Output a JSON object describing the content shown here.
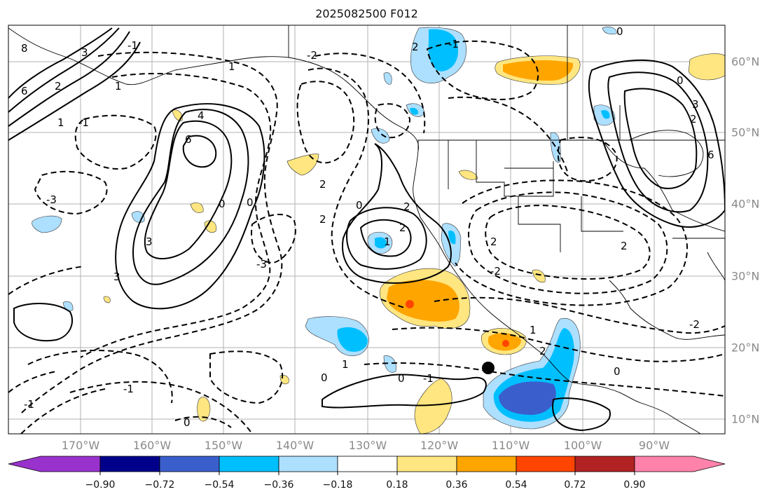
{
  "title": "2025082500 F012",
  "map": {
    "lon_labels": [
      "170°W",
      "160°W",
      "150°W",
      "140°W",
      "130°W",
      "120°W",
      "110°W",
      "100°W",
      "90°W"
    ],
    "lat_labels": [
      "60°N",
      "50°N",
      "40°N",
      "30°N",
      "20°N",
      "10°N"
    ],
    "contour_labels": [
      "8",
      "3",
      "6",
      "2",
      "1",
      "4",
      "6",
      "-1",
      "-3",
      "3",
      "0",
      "0",
      "-3",
      "3",
      "-2",
      "-1",
      "2",
      "0",
      "2",
      "2",
      "1",
      "2",
      "1",
      "-1",
      "0",
      "0",
      "1",
      "-1",
      "0",
      "2",
      "-2",
      "2",
      "-2",
      "2",
      "1",
      "2",
      "-1",
      "0",
      "3",
      "6",
      "2",
      "0",
      "1",
      "0",
      "-1"
    ],
    "marker": "black-dot"
  },
  "colorbar": {
    "tick_labels": [
      "−0.90",
      "−0.72",
      "−0.54",
      "−0.36",
      "−0.18",
      "0.18",
      "0.36",
      "0.54",
      "0.72",
      "0.90"
    ],
    "colors": [
      "#9932CC",
      "#00008B",
      "#3A5FCD",
      "#00BFFF",
      "#ADDFFF",
      "#FFFFFF",
      "#FFE680",
      "#FFA500",
      "#FF4500",
      "#B22222",
      "#FF82AB"
    ]
  }
}
